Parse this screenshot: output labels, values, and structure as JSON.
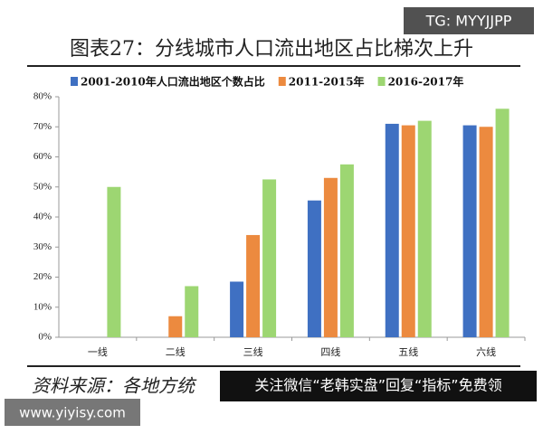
{
  "chart_data": {
    "type": "bar",
    "title": "图表27：分线城市人口流出地区占比梯次上升",
    "categories": [
      "一线",
      "二线",
      "三线",
      "四线",
      "五线",
      "六线"
    ],
    "series": [
      {
        "name": "2001-2010年人口流出地区个数占比",
        "color": "#3f70c2",
        "values": [
          null,
          null,
          18.5,
          45.5,
          71,
          70.5
        ]
      },
      {
        "name": "2011-2015年",
        "color": "#ec8a3f",
        "values": [
          null,
          7,
          34,
          53,
          70.5,
          70
        ]
      },
      {
        "name": "2016-2017年",
        "color": "#9dd672",
        "values": [
          50,
          17,
          52.5,
          57.5,
          72,
          76
        ]
      }
    ],
    "ylim": [
      0,
      80
    ],
    "yticks": [
      {
        "value": 0,
        "label": "0%"
      },
      {
        "value": 10,
        "label": "10%"
      },
      {
        "value": 20,
        "label": "20%"
      },
      {
        "value": 30,
        "label": "30%"
      },
      {
        "value": 40,
        "label": "40%"
      },
      {
        "value": 50,
        "label": "50%"
      },
      {
        "value": 60,
        "label": "60%"
      },
      {
        "value": 70,
        "label": "70%"
      },
      {
        "value": 80,
        "label": "80%"
      }
    ],
    "grid": false,
    "legend": "top",
    "source": "资料来源：各地方统",
    "watermarks": [
      "TG: MYYJJPP",
      "关注微信“老韩实盘”回复“指标”免费领",
      "www.yiyisy.com"
    ]
  }
}
